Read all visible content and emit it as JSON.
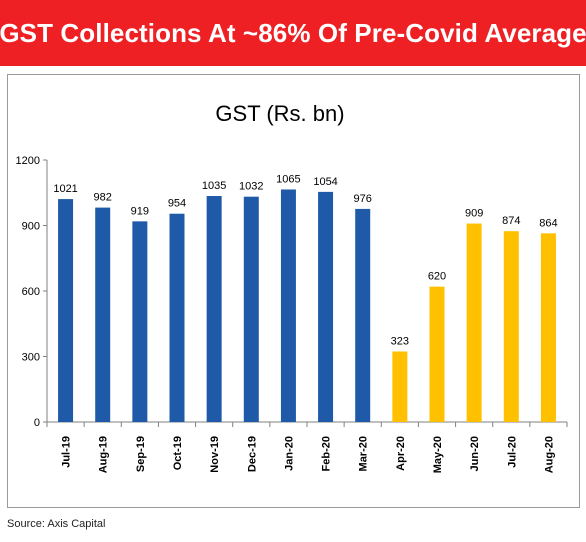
{
  "header": {
    "title": "GST Collections At ~86% Of Pre-Covid Average"
  },
  "footer": {
    "source": "Source: Axis Capital"
  },
  "colors": {
    "banner": "#ee2024",
    "pre_covid": "#1e5aa8",
    "post_covid": "#ffc000"
  },
  "chart_data": {
    "type": "bar",
    "title": "GST (Rs. bn)",
    "xlabel": "",
    "ylabel": "",
    "categories": [
      "Jul-19",
      "Aug-19",
      "Sep-19",
      "Oct-19",
      "Nov-19",
      "Dec-19",
      "Jan-20",
      "Feb-20",
      "Mar-20",
      "Apr-20",
      "May-20",
      "Jun-20",
      "Jul-20",
      "Aug-20"
    ],
    "values": [
      1021,
      982,
      919,
      954,
      1035,
      1032,
      1065,
      1054,
      976,
      323,
      620,
      909,
      874,
      864
    ],
    "bar_colors": [
      "#1e5aa8",
      "#1e5aa8",
      "#1e5aa8",
      "#1e5aa8",
      "#1e5aa8",
      "#1e5aa8",
      "#1e5aa8",
      "#1e5aa8",
      "#1e5aa8",
      "#ffc000",
      "#ffc000",
      "#ffc000",
      "#ffc000",
      "#ffc000"
    ],
    "ylim": [
      0,
      1200
    ],
    "yticks": [
      0,
      300,
      600,
      900,
      1200
    ],
    "grid": false,
    "legend": "none",
    "data_labels": true
  }
}
